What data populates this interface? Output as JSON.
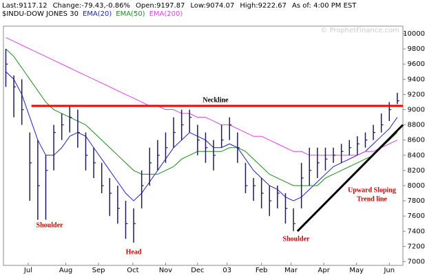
{
  "chart_data": {
    "type": "ohlc",
    "header": [
      "Last:9117.12",
      "Change:-79.43,-0.86%",
      "Open:9197.87",
      "Low:9074.07",
      "High:9222.67",
      "As of: 4:00 PM EST"
    ],
    "watermark": "© ProphetFinance.com",
    "x": [
      0,
      1,
      2,
      3,
      4,
      5,
      6,
      7,
      8,
      9,
      10,
      11,
      12,
      13,
      14,
      15,
      16,
      17,
      18,
      19,
      20,
      21,
      22,
      23,
      24,
      25,
      26,
      27,
      28,
      29,
      30,
      31,
      32,
      33,
      34,
      35,
      36,
      37,
      38,
      39,
      40,
      41,
      42,
      43,
      44,
      45,
      46,
      47,
      48,
      49
    ],
    "xlim": [
      -0.3,
      49.7
    ],
    "xticks": [
      {
        "value": 2.8,
        "label": "Jul"
      },
      {
        "value": 7.5,
        "label": "Aug"
      },
      {
        "value": 11.6,
        "label": "Sep"
      },
      {
        "value": 15.9,
        "label": "Oct"
      },
      {
        "value": 20.0,
        "label": "Nov"
      },
      {
        "value": 24.0,
        "label": "Dec"
      },
      {
        "value": 27.7,
        "label": "03"
      },
      {
        "value": 32.0,
        "label": "Feb"
      },
      {
        "value": 35.7,
        "label": "Mar"
      },
      {
        "value": 39.8,
        "label": "Apr"
      },
      {
        "value": 43.9,
        "label": "May"
      },
      {
        "value": 48.0,
        "label": "Jun"
      }
    ],
    "ylim": [
      6950,
      10100
    ],
    "yticks": [
      7000,
      7200,
      7400,
      7600,
      7800,
      8000,
      8200,
      8400,
      8600,
      8800,
      9000,
      9200,
      9400,
      9600,
      9800,
      10000
    ],
    "price": {
      "name": "$INDU-DOW JONES 30",
      "color": "#1a1a5a",
      "values": [
        9600,
        9300,
        9000,
        8300,
        8000,
        8200,
        8700,
        8800,
        8900,
        8700,
        8400,
        8300,
        8000,
        7900,
        7700,
        7500,
        7500,
        8000,
        8300,
        8400,
        8500,
        8700,
        8800,
        8900,
        8600,
        8500,
        8400,
        8600,
        8800,
        8500,
        8000,
        8000,
        7900,
        7800,
        7900,
        7700,
        7500,
        8100,
        8200,
        8300,
        8350,
        8400,
        8450,
        8500,
        8550,
        8600,
        8700,
        8800,
        9000,
        9117
      ],
      "high": [
        9800,
        9450,
        9400,
        8700,
        8600,
        8400,
        8800,
        8950,
        9050,
        9000,
        8700,
        8500,
        8300,
        8100,
        8000,
        7800,
        7700,
        8200,
        8500,
        8600,
        8700,
        8900,
        9000,
        9000,
        8800,
        8700,
        8600,
        8800,
        8900,
        8700,
        8300,
        8100,
        8100,
        8000,
        8000,
        7900,
        7700,
        8300,
        8500,
        8500,
        8500,
        8500,
        8550,
        8600,
        8650,
        8700,
        8800,
        8950,
        9100,
        9222
      ],
      "low": [
        9300,
        8900,
        8800,
        7800,
        7550,
        7550,
        8200,
        8600,
        8700,
        8500,
        8200,
        8100,
        7900,
        7600,
        7500,
        7300,
        7250,
        7700,
        8000,
        8200,
        8300,
        8500,
        8600,
        8700,
        8400,
        8300,
        8200,
        8500,
        8600,
        8300,
        7900,
        7800,
        7700,
        7600,
        7700,
        7500,
        7400,
        7700,
        8000,
        8100,
        8200,
        8300,
        8300,
        8400,
        8400,
        8500,
        8600,
        8700,
        8850,
        9074
      ]
    },
    "series": [
      {
        "name": "EMA(20)",
        "color": "#2020c0",
        "values": [
          9500,
          9400,
          9200,
          8900,
          8600,
          8400,
          8400,
          8500,
          8650,
          8700,
          8650,
          8500,
          8350,
          8200,
          8050,
          7900,
          7800,
          7900,
          8050,
          8200,
          8350,
          8500,
          8600,
          8700,
          8650,
          8600,
          8500,
          8500,
          8550,
          8500,
          8350,
          8200,
          8100,
          8000,
          7950,
          7850,
          7800,
          7850,
          7950,
          8050,
          8150,
          8250,
          8300,
          8350,
          8400,
          8450,
          8550,
          8650,
          8750,
          8900
        ]
      },
      {
        "name": "EMA(50)",
        "color": "#1a8a1a",
        "values": [
          9800,
          9700,
          9550,
          9400,
          9250,
          9100,
          9000,
          8950,
          8900,
          8850,
          8800,
          8700,
          8600,
          8500,
          8400,
          8300,
          8200,
          8150,
          8150,
          8150,
          8200,
          8250,
          8350,
          8400,
          8450,
          8450,
          8450,
          8450,
          8500,
          8500,
          8450,
          8350,
          8250,
          8150,
          8100,
          8050,
          8000,
          8000,
          8000,
          8000,
          8100,
          8150,
          8200,
          8250,
          8300,
          8350,
          8400,
          8500,
          8600,
          8700
        ]
      },
      {
        "name": "EMA(200)",
        "color": "#e040e0",
        "values": [
          9950,
          9900,
          9850,
          9800,
          9750,
          9700,
          9650,
          9600,
          9550,
          9500,
          9450,
          9400,
          9350,
          9300,
          9250,
          9200,
          9150,
          9100,
          9050,
          9050,
          9000,
          9000,
          8950,
          8950,
          8900,
          8900,
          8850,
          8800,
          8800,
          8750,
          8700,
          8650,
          8650,
          8600,
          8550,
          8500,
          8450,
          8450,
          8400,
          8400,
          8400,
          8400,
          8400,
          8400,
          8400,
          8450,
          8450,
          8500,
          8550,
          8600
        ]
      }
    ],
    "neckline": {
      "label": "Neckline",
      "color": "#ff0000",
      "x": [
        3.2,
        49.7
      ],
      "y": [
        9050,
        9050
      ]
    },
    "trendline": {
      "label": [
        "Upward Sloping",
        "Trend line"
      ],
      "color": "#000000",
      "x": [
        36.5,
        49.7
      ],
      "y": [
        7400,
        8800
      ]
    },
    "annotations": [
      "Shoulder",
      "Head",
      "Shoulder"
    ],
    "annotation_color": "#cc0000"
  }
}
